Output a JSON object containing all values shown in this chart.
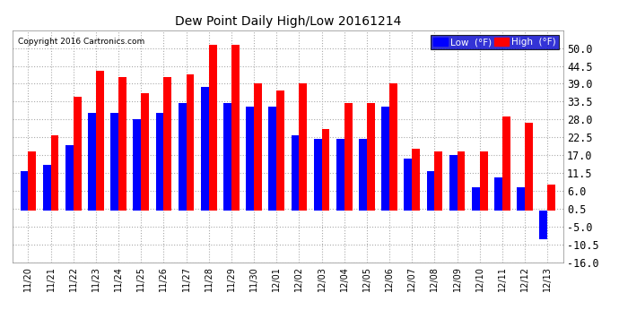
{
  "title": "Dew Point Daily High/Low 20161214",
  "copyright": "Copyright 2016 Cartronics.com",
  "dates": [
    "11/20",
    "11/21",
    "11/22",
    "11/23",
    "11/24",
    "11/25",
    "11/26",
    "11/27",
    "11/28",
    "11/29",
    "11/30",
    "12/01",
    "12/02",
    "12/03",
    "12/04",
    "12/05",
    "12/06",
    "12/07",
    "12/08",
    "12/09",
    "12/10",
    "12/11",
    "12/12",
    "12/13"
  ],
  "lows": [
    12,
    14,
    20,
    30,
    30,
    28,
    30,
    33,
    38,
    33,
    32,
    32,
    23,
    22,
    22,
    22,
    32,
    16,
    12,
    17,
    7,
    10,
    7,
    -9
  ],
  "highs": [
    18,
    23,
    35,
    43,
    41,
    36,
    41,
    42,
    51,
    51,
    39,
    37,
    39,
    25,
    33,
    33,
    39,
    19,
    18,
    18,
    18,
    29,
    27,
    8
  ],
  "low_color": "#0000ff",
  "high_color": "#ff0000",
  "bg_color": "#ffffff",
  "grid_color": "#aaaaaa",
  "ylim_min": -16.0,
  "ylim_max": 55.5,
  "yticks": [
    -16.0,
    -10.5,
    -5.0,
    0.5,
    6.0,
    11.5,
    17.0,
    22.5,
    28.0,
    33.5,
    39.0,
    44.5,
    50.0
  ],
  "legend_low_label": "Low  (°F)",
  "legend_high_label": "High  (°F)",
  "bar_width": 0.35
}
